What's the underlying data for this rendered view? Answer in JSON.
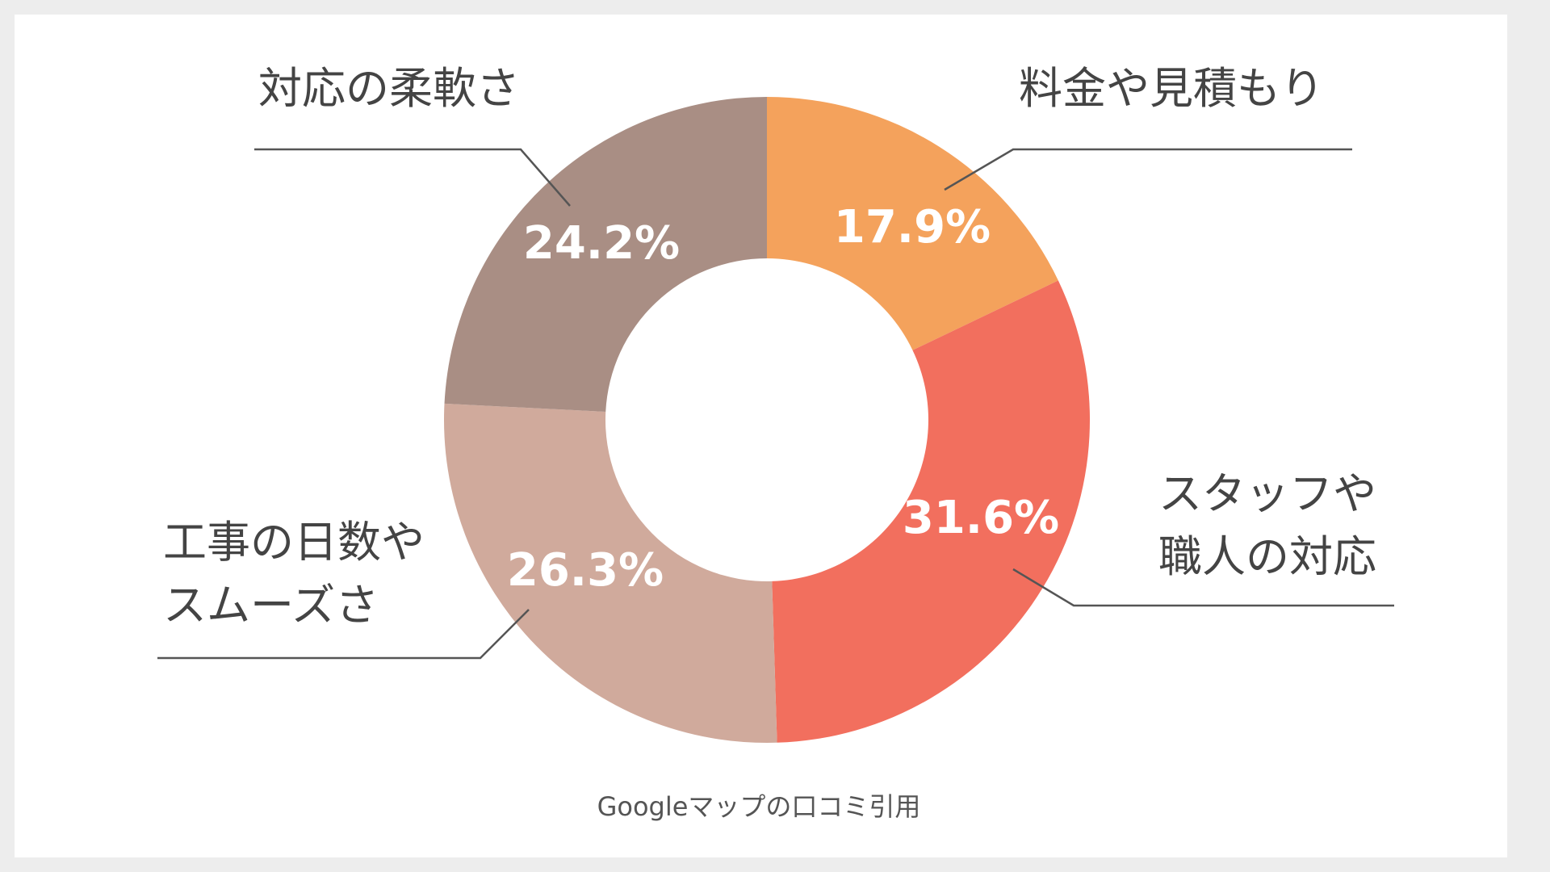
{
  "chart_data": {
    "type": "pie",
    "subtype": "donut",
    "categories": [
      "料金や見積もり",
      "スタッフや職人の対応",
      "工事の日数やスムーズさ",
      "対応の柔軟さ"
    ],
    "category_lines": [
      [
        "料金や見積もり"
      ],
      [
        "スタッフや",
        "職人の対応"
      ],
      [
        "工事の日数や",
        "スムーズさ"
      ],
      [
        "対応の柔軟さ"
      ]
    ],
    "values": [
      17.9,
      31.6,
      26.3,
      24.2
    ],
    "value_labels": [
      "17.9%",
      "31.6%",
      "26.3%",
      "24.2%"
    ],
    "colors": [
      "#f4a25c",
      "#f26f5e",
      "#d0aa9c",
      "#a98e84"
    ],
    "unit": "%"
  },
  "source_note": "Googleマップの口コミ引用"
}
